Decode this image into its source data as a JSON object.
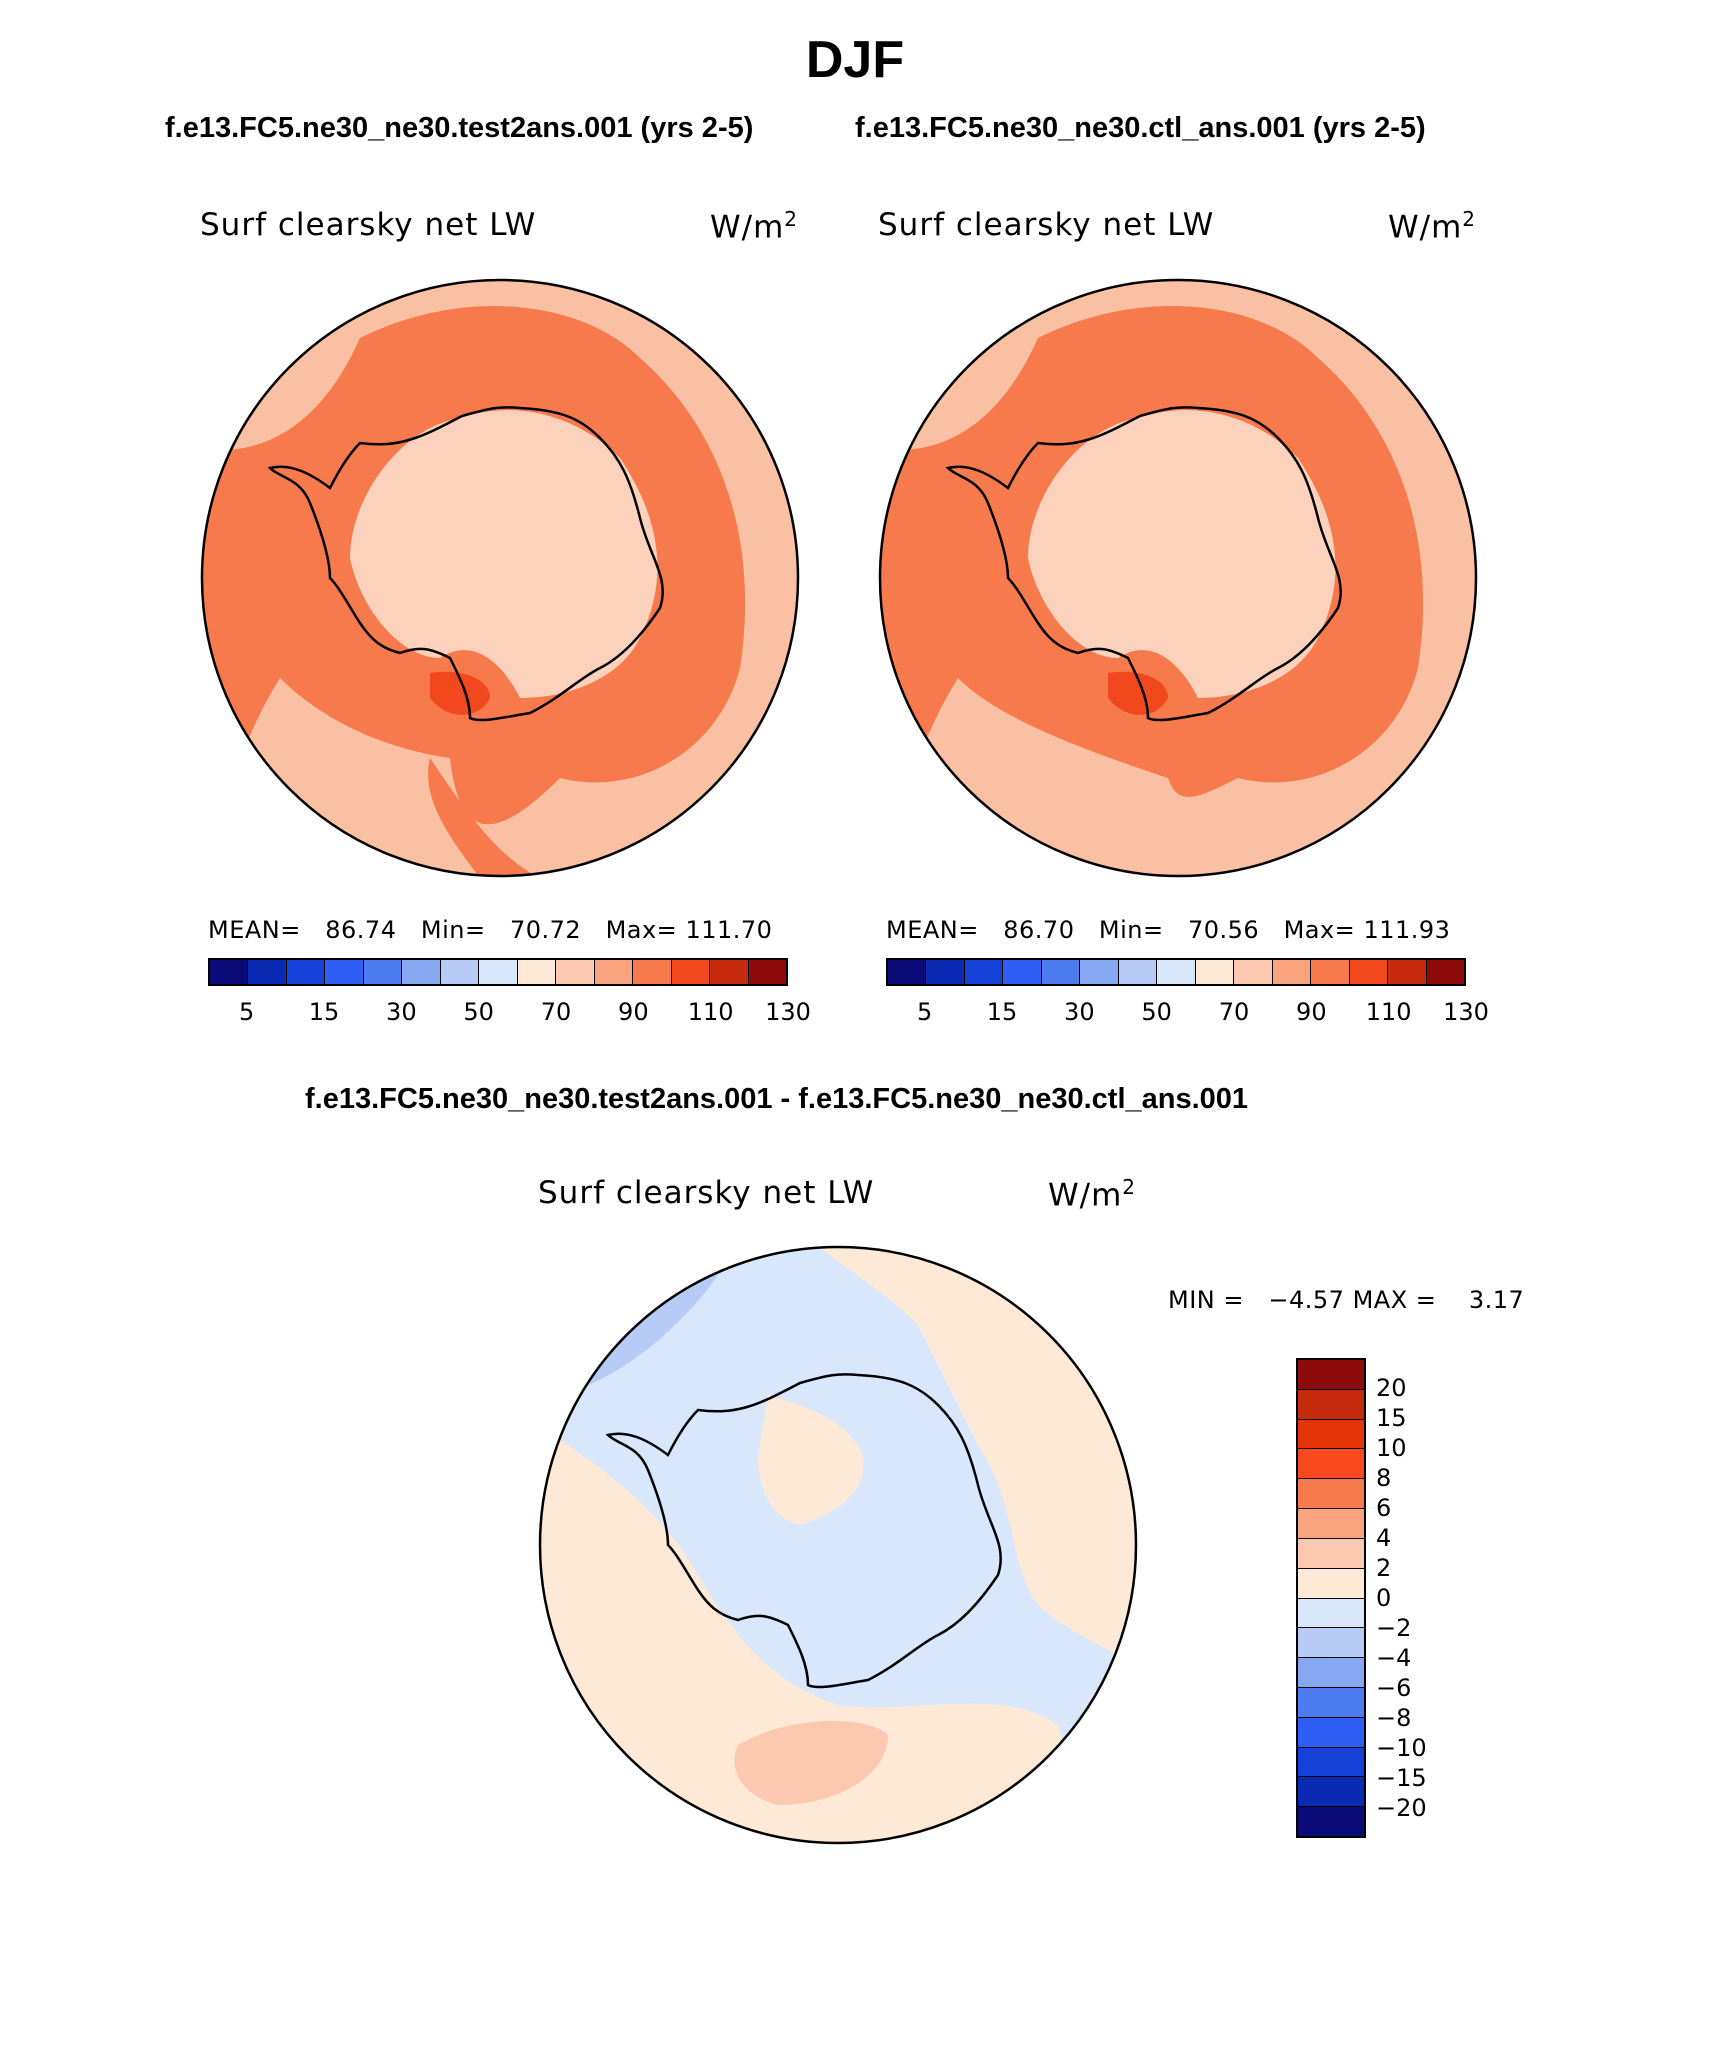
{
  "season_title": "DJF",
  "test_run": "f.e13.FC5.ne30_ne30.test2ans.001 (yrs 2-5)",
  "ctl_run": "f.e13.FC5.ne30_ne30.ctl_ans.001 (yrs 2-5)",
  "diff_run": "f.e13.FC5.ne30_ne30.test2ans.001 - f.e13.FC5.ne30_ne30.ctl_ans.001",
  "panels": {
    "test": {
      "variable": "Surf clearsky net LW",
      "units": "W/m",
      "units_exp": "2",
      "mean_label": "MEAN=",
      "mean": "86.74",
      "min_label": "Min=",
      "min": "70.72",
      "max_label": "Max=",
      "max": "111.70"
    },
    "ctl": {
      "variable": "Surf clearsky net LW",
      "units": "W/m",
      "units_exp": "2",
      "mean_label": "MEAN=",
      "mean": "86.70",
      "min_label": "Min=",
      "min": "70.56",
      "max_label": "Max=",
      "max": "111.93"
    },
    "diff": {
      "variable": "Surf clearsky net LW",
      "units": "W/m",
      "units_exp": "2",
      "min_label": "MIN =",
      "min": "−4.57",
      "max_label": "MAX =",
      "max": "3.17"
    }
  },
  "abs_colorbar": {
    "colors": [
      "#0a0a78",
      "#0a2ab4",
      "#1541d9",
      "#2f5ef5",
      "#4d7cf0",
      "#86a7f2",
      "#b6cbf6",
      "#d8e7fb",
      "#fde9d6",
      "#fcc9b0",
      "#f9a47f",
      "#f77a4c",
      "#f2481e",
      "#c52a0c",
      "#8e0b0b"
    ],
    "ticks": [
      "5",
      "15",
      "30",
      "50",
      "70",
      "90",
      "110",
      "130"
    ]
  },
  "diff_colorbar": {
    "colors": [
      "#8e0b0b",
      "#c52a0c",
      "#e43508",
      "#f84a1e",
      "#f77a4c",
      "#f9a47f",
      "#fcc9b0",
      "#fde9d6",
      "#d8e7fb",
      "#b6cbf6",
      "#86a7f2",
      "#4d7cf0",
      "#2f5ef5",
      "#1541d9",
      "#0a2ab4",
      "#0a0a78"
    ],
    "ticks": [
      "20",
      "15",
      "10",
      "8",
      "6",
      "4",
      "2",
      "0",
      "−2",
      "−4",
      "−6",
      "−8",
      "−10",
      "−15",
      "−20"
    ]
  },
  "map_colors": {
    "ocean": "#fac0a3",
    "band": "#f77a4c",
    "ice": "#fcd2bd",
    "hot": "#f2481e",
    "diff_pos": "#fde9d6",
    "diff_neg": "#d8e7fb",
    "diff_neg2": "#b6cbf6",
    "diff_pos2": "#fcc9b0"
  }
}
